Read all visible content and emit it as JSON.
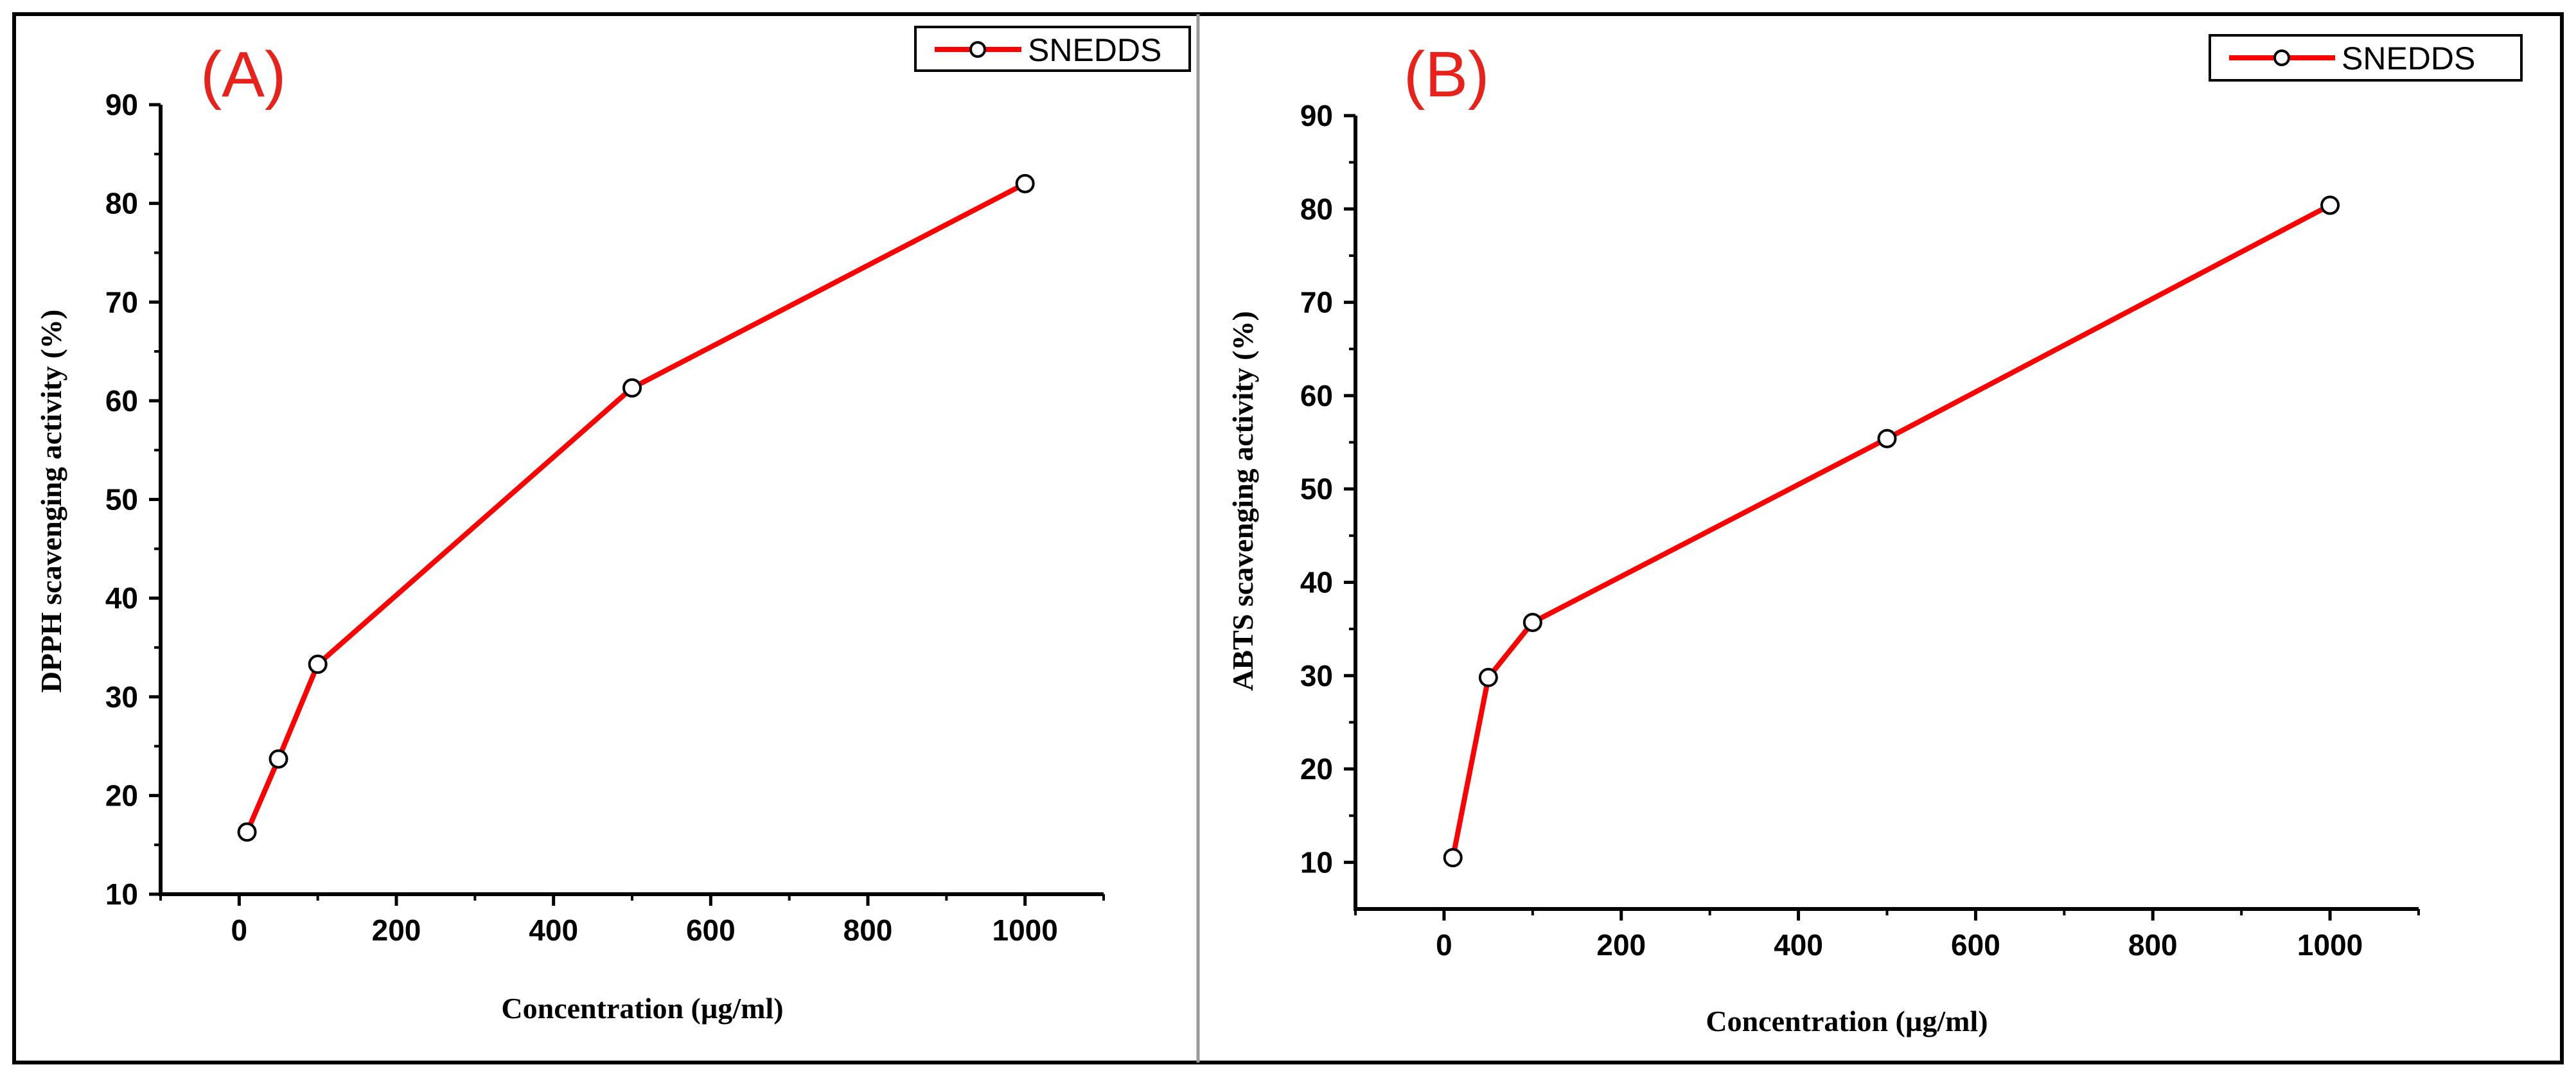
{
  "colors": {
    "series": "#ff0000",
    "panel_label": "#e8211b",
    "axis": "#000000",
    "marker_fill": "#ffffff",
    "frame": "#000000",
    "divider": "#9a9a9a"
  },
  "chart_data": [
    {
      "type": "line",
      "panel_label": "(A)",
      "title": "",
      "xlabel": "Concentration (µg/ml)",
      "ylabel": "DPPH scavenging activity (%)",
      "xlim": [
        -100,
        1100
      ],
      "ylim": [
        10,
        90
      ],
      "xticks": [
        "0",
        "200",
        "400",
        "600",
        "800",
        "1000"
      ],
      "yticks": [
        "10",
        "20",
        "30",
        "40",
        "50",
        "60",
        "70",
        "80",
        "90"
      ],
      "legend": "top-right",
      "series": [
        {
          "name": "SNEDDS",
          "x": [
            10,
            50,
            100,
            500,
            1000
          ],
          "y": [
            16.3,
            23.7,
            33.3,
            61.3,
            82.0
          ]
        }
      ]
    },
    {
      "type": "line",
      "panel_label": "(B)",
      "title": "",
      "xlabel": "Concentration (µg/ml)",
      "ylabel": "ABTS scavenging activity (%)",
      "xlim": [
        -100,
        1100
      ],
      "ylim": [
        5,
        90
      ],
      "xticks": [
        "0",
        "200",
        "400",
        "600",
        "800",
        "1000"
      ],
      "yticks": [
        "10",
        "20",
        "30",
        "40",
        "50",
        "60",
        "70",
        "80",
        "90"
      ],
      "legend": "top-right",
      "series": [
        {
          "name": "SNEDDS",
          "x": [
            10,
            50,
            100,
            500,
            1000
          ],
          "y": [
            10.5,
            29.8,
            35.7,
            55.4,
            80.4
          ]
        }
      ]
    }
  ]
}
